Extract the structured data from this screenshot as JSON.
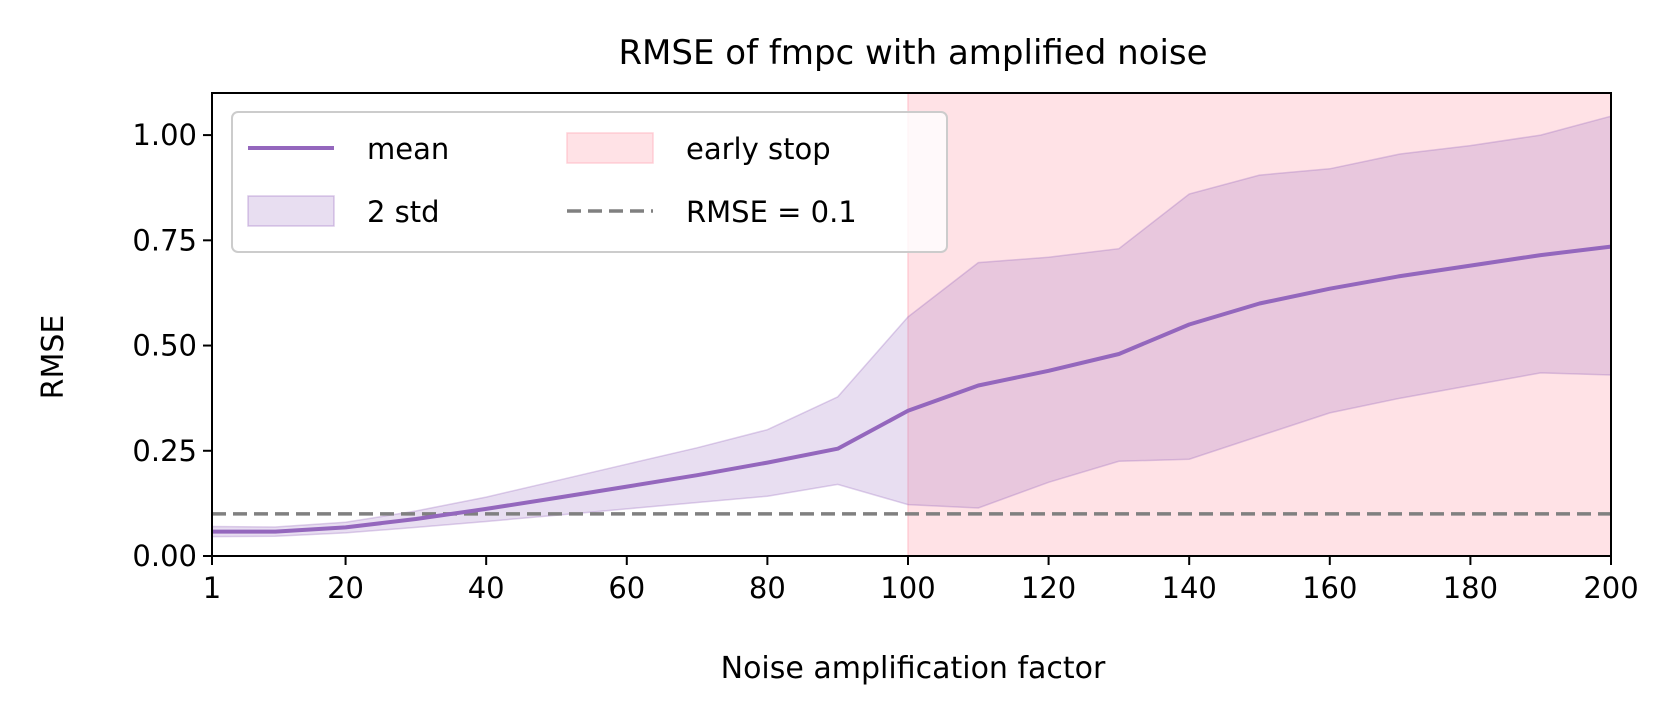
{
  "chart_data": {
    "type": "line",
    "title": "RMSE of fmpc with amplified noise",
    "xlabel": "Noise amplification factor",
    "ylabel": "RMSE",
    "xlim": [
      1,
      200
    ],
    "ylim": [
      0,
      1.1
    ],
    "xticks": [
      1,
      20,
      40,
      60,
      80,
      100,
      120,
      140,
      160,
      180,
      200
    ],
    "xtick_labels": [
      "1",
      "20",
      "40",
      "60",
      "80",
      "100",
      "120",
      "140",
      "160",
      "180",
      "200"
    ],
    "yticks": [
      0,
      0.25,
      0.5,
      0.75,
      1.0
    ],
    "ytick_labels": [
      "0.00",
      "0.25",
      "0.50",
      "0.75",
      "1.00"
    ],
    "grid": false,
    "legend_position": "top-left",
    "x": [
      1,
      10,
      20,
      30,
      40,
      50,
      60,
      70,
      80,
      90,
      100,
      110,
      120,
      130,
      140,
      150,
      160,
      170,
      180,
      190,
      200
    ],
    "series": [
      {
        "name": "mean",
        "kind": "line",
        "color": "#9467bd",
        "values": [
          0.058,
          0.058,
          0.068,
          0.088,
          0.112,
          0.138,
          0.165,
          0.192,
          0.222,
          0.255,
          0.345,
          0.405,
          0.44,
          0.48,
          0.55,
          0.6,
          0.635,
          0.665,
          0.69,
          0.715,
          0.735
        ]
      },
      {
        "name": "2 std",
        "kind": "band",
        "color": "#9467bd",
        "lower": [
          0.046,
          0.047,
          0.055,
          0.068,
          0.082,
          0.097,
          0.112,
          0.127,
          0.142,
          0.17,
          0.122,
          0.114,
          0.175,
          0.225,
          0.23,
          0.285,
          0.34,
          0.375,
          0.405,
          0.435,
          0.43
        ],
        "upper": [
          0.07,
          0.069,
          0.08,
          0.107,
          0.14,
          0.179,
          0.218,
          0.257,
          0.3,
          0.378,
          0.568,
          0.697,
          0.71,
          0.73,
          0.86,
          0.905,
          0.92,
          0.955,
          0.975,
          1.0,
          1.045
        ]
      },
      {
        "name": "early stop",
        "kind": "span",
        "color": "#ffb6c1",
        "x_range": [
          100,
          200
        ]
      },
      {
        "name": "RMSE = 0.1",
        "kind": "hline",
        "color": "#808080",
        "y": 0.1
      }
    ]
  }
}
